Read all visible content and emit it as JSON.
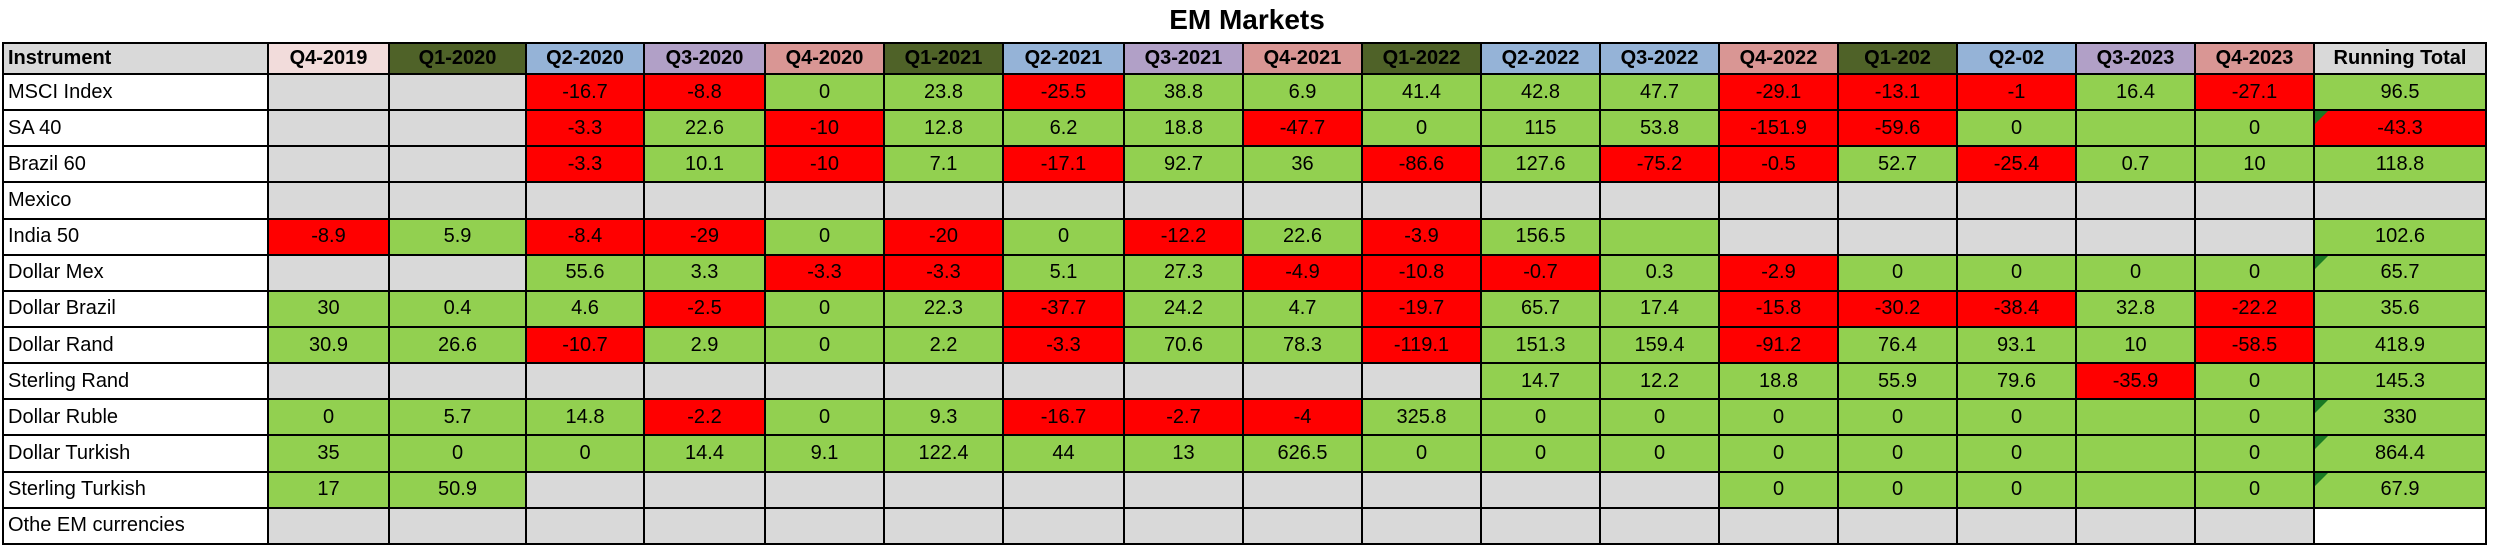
{
  "title": "EM Markets",
  "colors": {
    "green": "#92d050",
    "red": "#ff0000",
    "gray": "#d9d9d9",
    "white": "#ffffff",
    "triangle": "#1a7a24",
    "header": {
      "pink": "#f2dcdb",
      "olive": "#4f6228",
      "blue": "#95b3d7",
      "purple": "#b1a0c7",
      "salmon": "#d99694",
      "gray": "#d9d9d9"
    }
  },
  "table": {
    "instrument_header": "Instrument",
    "running_total_header": "Running Total",
    "columns": [
      {
        "label": "Q4-2019",
        "bg": "pink"
      },
      {
        "label": "Q1-2020",
        "bg": "olive"
      },
      {
        "label": "Q2-2020",
        "bg": "blue"
      },
      {
        "label": "Q3-2020",
        "bg": "purple"
      },
      {
        "label": "Q4-2020",
        "bg": "salmon"
      },
      {
        "label": "Q1-2021",
        "bg": "olive"
      },
      {
        "label": "Q2-2021",
        "bg": "blue"
      },
      {
        "label": "Q3-2021",
        "bg": "purple"
      },
      {
        "label": "Q4-2021",
        "bg": "salmon"
      },
      {
        "label": "Q1-2022",
        "bg": "olive"
      },
      {
        "label": "Q2-2022",
        "bg": "blue"
      },
      {
        "label": "Q3-2022",
        "bg": "blue"
      },
      {
        "label": "Q4-2022",
        "bg": "salmon"
      },
      {
        "label": "Q1-202",
        "bg": "olive"
      },
      {
        "label": "Q2-02",
        "bg": "blue"
      },
      {
        "label": "Q3-2023",
        "bg": "purple"
      },
      {
        "label": "Q4-2023",
        "bg": "salmon"
      }
    ],
    "rows": [
      {
        "instrument": "MSCI Index",
        "cells": [
          [
            "",
            "e"
          ],
          [
            "",
            "e"
          ],
          [
            "-16.7",
            "r"
          ],
          [
            "-8.8",
            "r"
          ],
          [
            "0",
            "g"
          ],
          [
            "23.8",
            "g"
          ],
          [
            "-25.5",
            "r"
          ],
          [
            "38.8",
            "g"
          ],
          [
            "6.9",
            "g"
          ],
          [
            "41.4",
            "g"
          ],
          [
            "42.8",
            "g"
          ],
          [
            "47.7",
            "g"
          ],
          [
            "-29.1",
            "r"
          ],
          [
            "-13.1",
            "r"
          ],
          [
            "-1",
            "r"
          ],
          [
            "16.4",
            "g"
          ],
          [
            "-27.1",
            "r"
          ]
        ],
        "total": {
          "value": "96.5",
          "color": "g",
          "corner": false
        }
      },
      {
        "instrument": "SA 40",
        "cells": [
          [
            "",
            "e"
          ],
          [
            "",
            "e"
          ],
          [
            "-3.3",
            "r"
          ],
          [
            "22.6",
            "g"
          ],
          [
            "-10",
            "r"
          ],
          [
            "12.8",
            "g"
          ],
          [
            "6.2",
            "g"
          ],
          [
            "18.8",
            "g"
          ],
          [
            "-47.7",
            "r"
          ],
          [
            "0",
            "g"
          ],
          [
            "115",
            "g"
          ],
          [
            "53.8",
            "g"
          ],
          [
            "-151.9",
            "r"
          ],
          [
            "-59.6",
            "r"
          ],
          [
            "0",
            "g"
          ],
          [
            "",
            "g"
          ],
          [
            "0",
            "g"
          ]
        ],
        "total": {
          "value": "-43.3",
          "color": "r",
          "corner": true
        }
      },
      {
        "instrument": "Brazil 60",
        "cells": [
          [
            "",
            "e"
          ],
          [
            "",
            "e"
          ],
          [
            "-3.3",
            "r"
          ],
          [
            "10.1",
            "g"
          ],
          [
            "-10",
            "r"
          ],
          [
            "7.1",
            "g"
          ],
          [
            "-17.1",
            "r"
          ],
          [
            "92.7",
            "g"
          ],
          [
            "36",
            "g"
          ],
          [
            "-86.6",
            "r"
          ],
          [
            "127.6",
            "g"
          ],
          [
            "-75.2",
            "r"
          ],
          [
            "-0.5",
            "r"
          ],
          [
            "52.7",
            "g"
          ],
          [
            "-25.4",
            "r"
          ],
          [
            "0.7",
            "g"
          ],
          [
            "10",
            "g"
          ]
        ],
        "total": {
          "value": "118.8",
          "color": "g",
          "corner": false
        }
      },
      {
        "instrument": "Mexico",
        "cells": [
          [
            "",
            "e"
          ],
          [
            "",
            "e"
          ],
          [
            "",
            "e"
          ],
          [
            "",
            "e"
          ],
          [
            "",
            "e"
          ],
          [
            "",
            "e"
          ],
          [
            "",
            "e"
          ],
          [
            "",
            "e"
          ],
          [
            "",
            "e"
          ],
          [
            "",
            "e"
          ],
          [
            "",
            "e"
          ],
          [
            "",
            "e"
          ],
          [
            "",
            "e"
          ],
          [
            "",
            "e"
          ],
          [
            "",
            "e"
          ],
          [
            "",
            "e"
          ],
          [
            "",
            "e"
          ]
        ],
        "total": {
          "value": "",
          "color": "e",
          "corner": false
        }
      },
      {
        "instrument": "India 50",
        "cells": [
          [
            "-8.9",
            "r"
          ],
          [
            "5.9",
            "g"
          ],
          [
            "-8.4",
            "r"
          ],
          [
            "-29",
            "r"
          ],
          [
            "0",
            "g"
          ],
          [
            "-20",
            "r"
          ],
          [
            "0",
            "g"
          ],
          [
            "-12.2",
            "r"
          ],
          [
            "22.6",
            "g"
          ],
          [
            "-3.9",
            "r"
          ],
          [
            "156.5",
            "g"
          ],
          [
            "",
            "g"
          ],
          [
            "",
            "e"
          ],
          [
            "",
            "e"
          ],
          [
            "",
            "e"
          ],
          [
            "",
            "e"
          ],
          [
            "",
            "e"
          ]
        ],
        "total": {
          "value": "102.6",
          "color": "g",
          "corner": false
        }
      },
      {
        "instrument": "Dollar Mex",
        "cells": [
          [
            "",
            "e"
          ],
          [
            "",
            "e"
          ],
          [
            "55.6",
            "g"
          ],
          [
            "3.3",
            "g"
          ],
          [
            "-3.3",
            "r"
          ],
          [
            "-3.3",
            "r"
          ],
          [
            "5.1",
            "g"
          ],
          [
            "27.3",
            "g"
          ],
          [
            "-4.9",
            "r"
          ],
          [
            "-10.8",
            "r"
          ],
          [
            "-0.7",
            "r"
          ],
          [
            "0.3",
            "g"
          ],
          [
            "-2.9",
            "r"
          ],
          [
            "0",
            "g"
          ],
          [
            "0",
            "g"
          ],
          [
            "0",
            "g"
          ],
          [
            "0",
            "g"
          ]
        ],
        "total": {
          "value": "65.7",
          "color": "g",
          "corner": true
        }
      },
      {
        "instrument": "Dollar Brazil",
        "cells": [
          [
            "30",
            "g"
          ],
          [
            "0.4",
            "g"
          ],
          [
            "4.6",
            "g"
          ],
          [
            "-2.5",
            "r"
          ],
          [
            "0",
            "g"
          ],
          [
            "22.3",
            "g"
          ],
          [
            "-37.7",
            "r"
          ],
          [
            "24.2",
            "g"
          ],
          [
            "4.7",
            "g"
          ],
          [
            "-19.7",
            "r"
          ],
          [
            "65.7",
            "g"
          ],
          [
            "17.4",
            "g"
          ],
          [
            "-15.8",
            "r"
          ],
          [
            "-30.2",
            "r"
          ],
          [
            "-38.4",
            "r"
          ],
          [
            "32.8",
            "g"
          ],
          [
            "-22.2",
            "r"
          ]
        ],
        "total": {
          "value": "35.6",
          "color": "g",
          "corner": false
        }
      },
      {
        "instrument": "Dollar Rand",
        "cells": [
          [
            "30.9",
            "g"
          ],
          [
            "26.6",
            "g"
          ],
          [
            "-10.7",
            "r"
          ],
          [
            "2.9",
            "g"
          ],
          [
            "0",
            "g"
          ],
          [
            "2.2",
            "g"
          ],
          [
            "-3.3",
            "r"
          ],
          [
            "70.6",
            "g"
          ],
          [
            "78.3",
            "g"
          ],
          [
            "-119.1",
            "r"
          ],
          [
            "151.3",
            "g"
          ],
          [
            "159.4",
            "g"
          ],
          [
            "-91.2",
            "r"
          ],
          [
            "76.4",
            "g"
          ],
          [
            "93.1",
            "g"
          ],
          [
            "10",
            "g"
          ],
          [
            "-58.5",
            "r"
          ]
        ],
        "total": {
          "value": "418.9",
          "color": "g",
          "corner": false
        }
      },
      {
        "instrument": "Sterling Rand",
        "cells": [
          [
            "",
            "e"
          ],
          [
            "",
            "e"
          ],
          [
            "",
            "e"
          ],
          [
            "",
            "e"
          ],
          [
            "",
            "e"
          ],
          [
            "",
            "e"
          ],
          [
            "",
            "e"
          ],
          [
            "",
            "e"
          ],
          [
            "",
            "e"
          ],
          [
            "",
            "e"
          ],
          [
            "14.7",
            "g"
          ],
          [
            "12.2",
            "g"
          ],
          [
            "18.8",
            "g"
          ],
          [
            "55.9",
            "g"
          ],
          [
            "79.6",
            "g"
          ],
          [
            "-35.9",
            "r"
          ],
          [
            "0",
            "g"
          ]
        ],
        "total": {
          "value": "145.3",
          "color": "g",
          "corner": false
        }
      },
      {
        "instrument": "Dollar Ruble",
        "cells": [
          [
            "0",
            "g"
          ],
          [
            "5.7",
            "g"
          ],
          [
            "14.8",
            "g"
          ],
          [
            "-2.2",
            "r"
          ],
          [
            "0",
            "g"
          ],
          [
            "9.3",
            "g"
          ],
          [
            "-16.7",
            "r"
          ],
          [
            "-2.7",
            "r"
          ],
          [
            "-4",
            "r"
          ],
          [
            "325.8",
            "g"
          ],
          [
            "0",
            "g"
          ],
          [
            "0",
            "g"
          ],
          [
            "0",
            "g"
          ],
          [
            "0",
            "g"
          ],
          [
            "0",
            "g"
          ],
          [
            "",
            "g"
          ],
          [
            "0",
            "g"
          ]
        ],
        "total": {
          "value": "330",
          "color": "g",
          "corner": true
        }
      },
      {
        "instrument": "Dollar Turkish",
        "cells": [
          [
            "35",
            "g"
          ],
          [
            "0",
            "g"
          ],
          [
            "0",
            "g"
          ],
          [
            "14.4",
            "g"
          ],
          [
            "9.1",
            "g"
          ],
          [
            "122.4",
            "g"
          ],
          [
            "44",
            "g"
          ],
          [
            "13",
            "g"
          ],
          [
            "626.5",
            "g"
          ],
          [
            "0",
            "g"
          ],
          [
            "0",
            "g"
          ],
          [
            "0",
            "g"
          ],
          [
            "0",
            "g"
          ],
          [
            "0",
            "g"
          ],
          [
            "0",
            "g"
          ],
          [
            "",
            "g"
          ],
          [
            "0",
            "g"
          ]
        ],
        "total": {
          "value": "864.4",
          "color": "g",
          "corner": true
        }
      },
      {
        "instrument": "Sterling Turkish",
        "cells": [
          [
            "17",
            "g"
          ],
          [
            "50.9",
            "g"
          ],
          [
            "",
            "e"
          ],
          [
            "",
            "e"
          ],
          [
            "",
            "e"
          ],
          [
            "",
            "e"
          ],
          [
            "",
            "e"
          ],
          [
            "",
            "e"
          ],
          [
            "",
            "e"
          ],
          [
            "",
            "e"
          ],
          [
            "",
            "e"
          ],
          [
            "",
            "e"
          ],
          [
            "0",
            "g"
          ],
          [
            "0",
            "g"
          ],
          [
            "0",
            "g"
          ],
          [
            "",
            "g"
          ],
          [
            "0",
            "g"
          ]
        ],
        "total": {
          "value": "67.9",
          "color": "g",
          "corner": true
        }
      },
      {
        "instrument": "Othe EM currencies",
        "cells": [
          [
            "",
            "e"
          ],
          [
            "",
            "e"
          ],
          [
            "",
            "e"
          ],
          [
            "",
            "e"
          ],
          [
            "",
            "e"
          ],
          [
            "",
            "e"
          ],
          [
            "",
            "e"
          ],
          [
            "",
            "e"
          ],
          [
            "",
            "e"
          ],
          [
            "",
            "e"
          ],
          [
            "",
            "e"
          ],
          [
            "",
            "e"
          ],
          [
            "",
            "e"
          ],
          [
            "",
            "e"
          ],
          [
            "",
            "e"
          ],
          [
            "",
            "e"
          ],
          [
            "",
            "e"
          ]
        ],
        "total": {
          "value": "",
          "color": "w",
          "corner": false
        }
      }
    ]
  },
  "layout_hints": {
    "instrument_col_width": 265,
    "quarter_col_widths": [
      121,
      137,
      118,
      121,
      119,
      119,
      121,
      119,
      119,
      119,
      119,
      119,
      119,
      119,
      119,
      119,
      119
    ],
    "running_total_col_width": 172
  }
}
